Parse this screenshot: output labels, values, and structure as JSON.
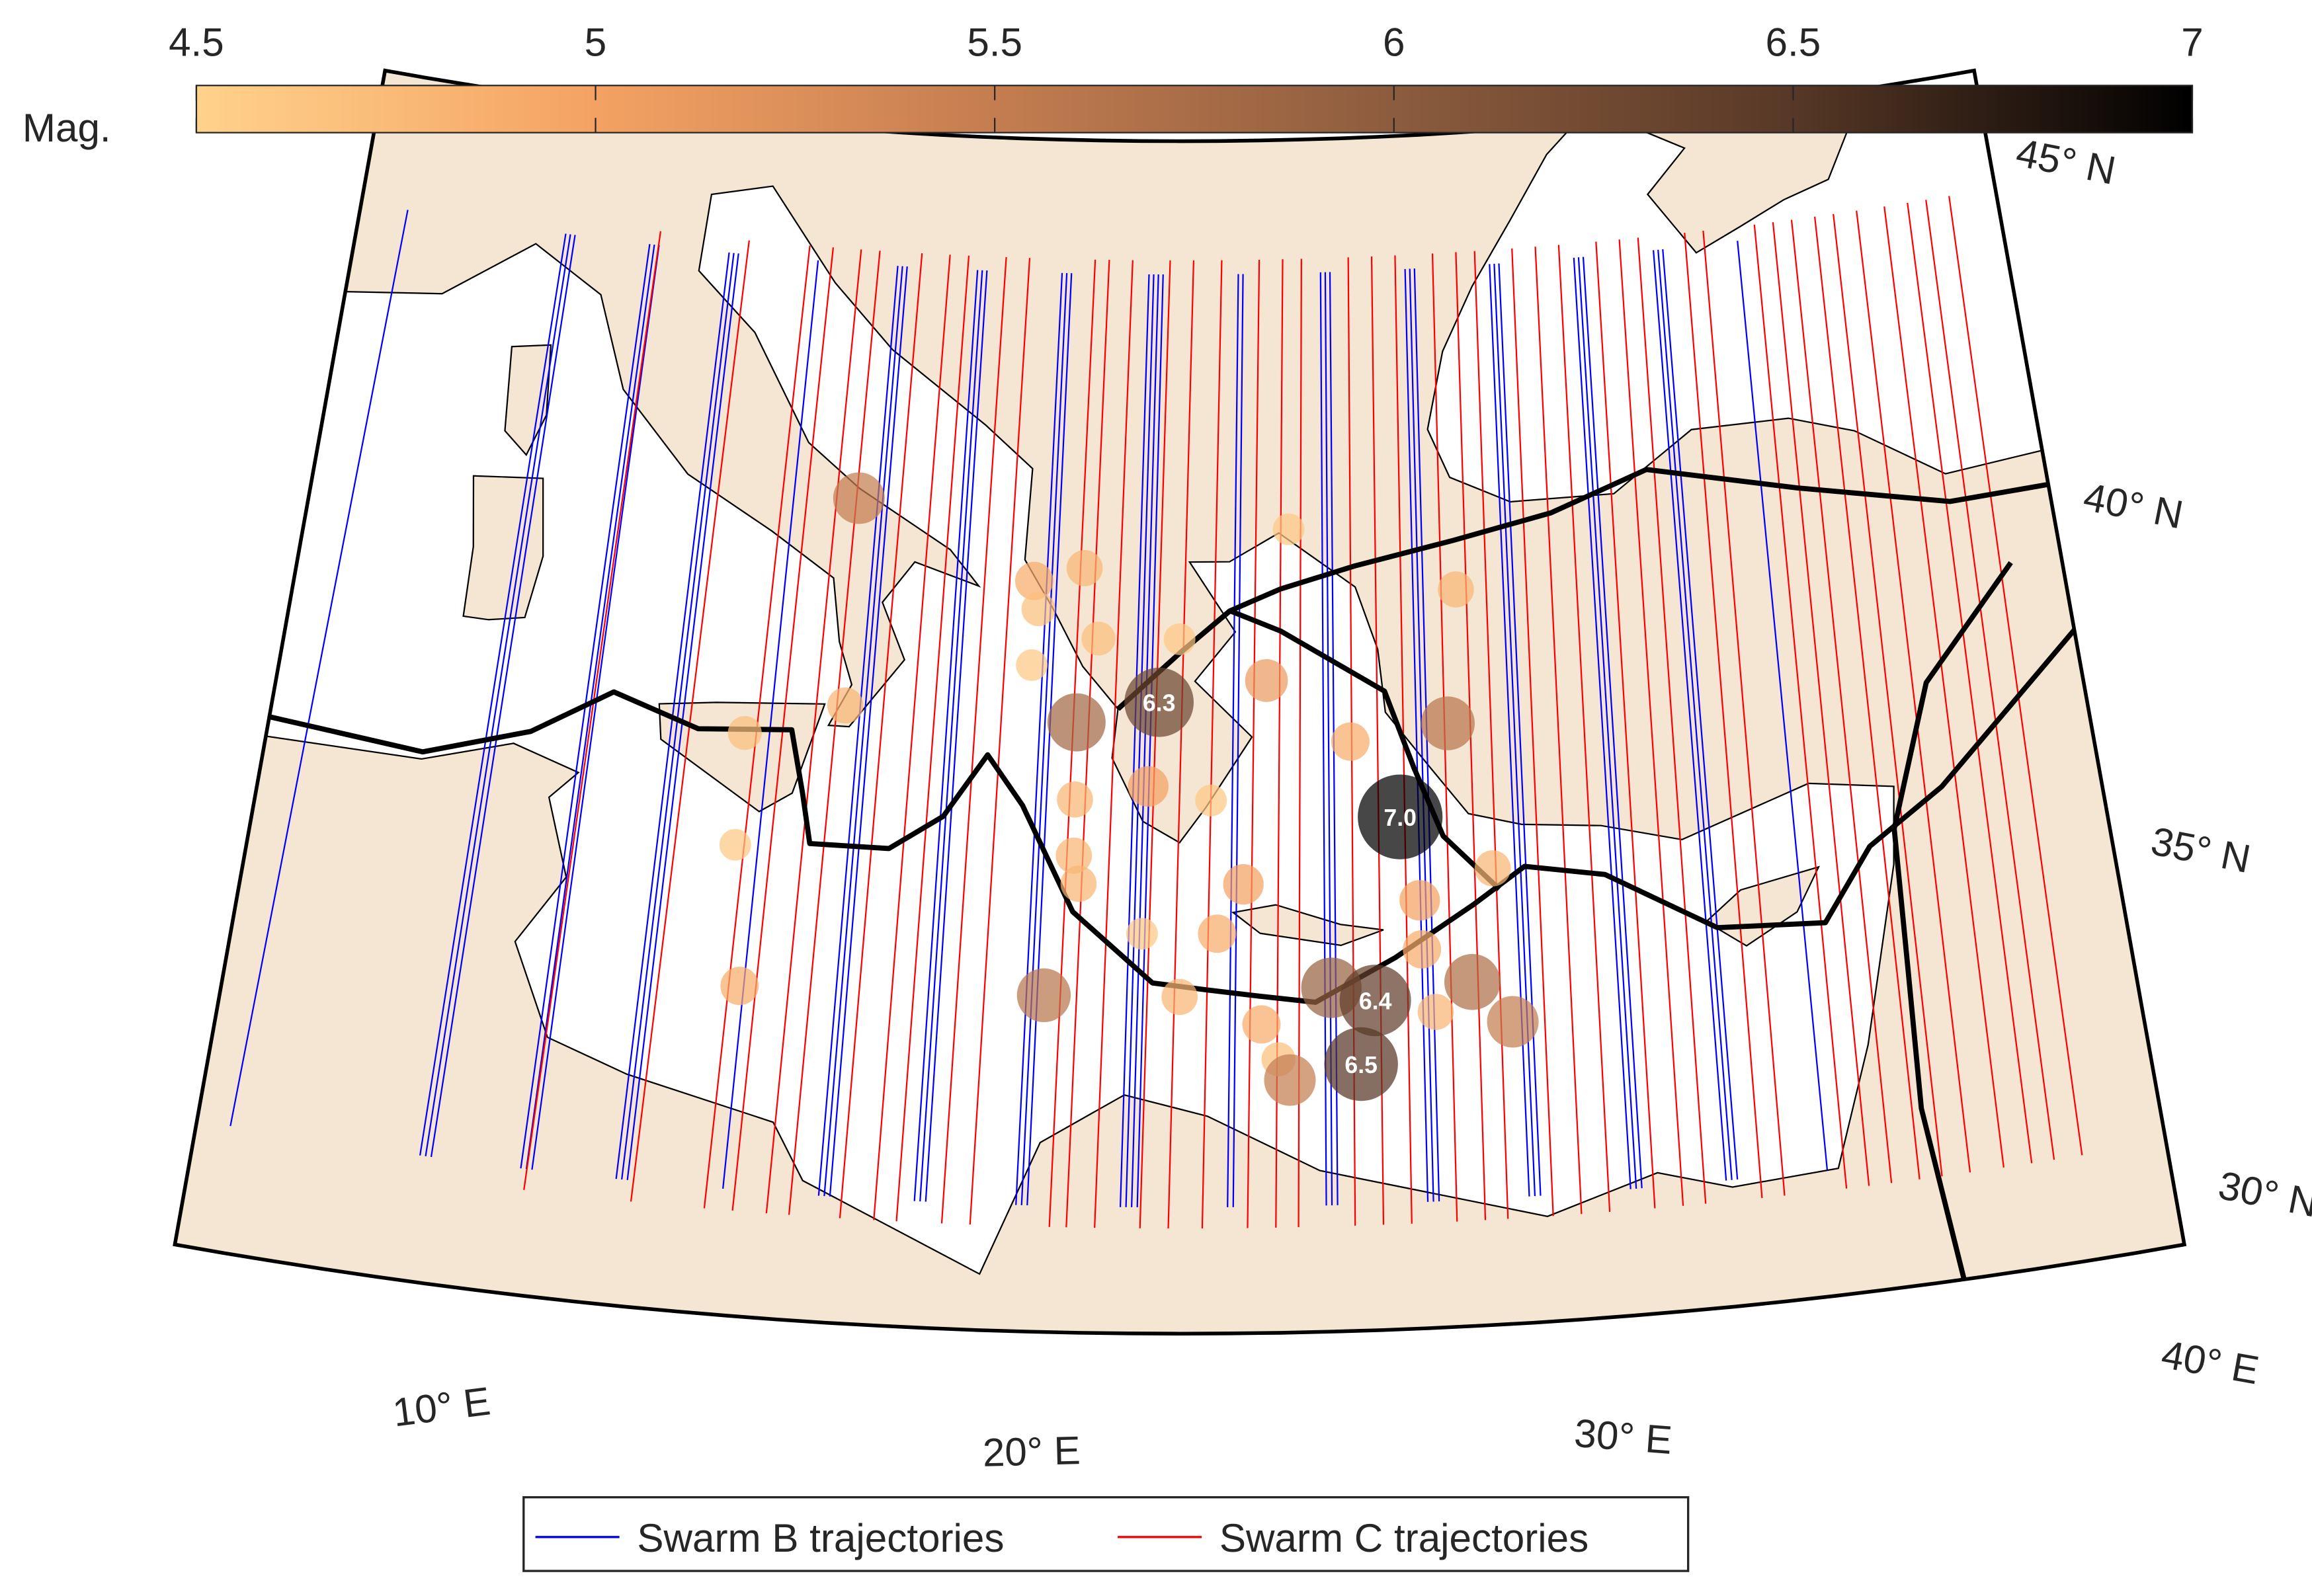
{
  "chart_data": {
    "type": "map",
    "xlim": [
      5,
      40
    ],
    "ylim": [
      29.5,
      46.5
    ],
    "xticks": [
      {
        "value": 10,
        "label": "10° E"
      },
      {
        "value": 20,
        "label": "20° E"
      },
      {
        "value": 30,
        "label": "30° E"
      },
      {
        "value": 40,
        "label": "40° E"
      }
    ],
    "yticks": [
      {
        "value": 30,
        "label": "30° N"
      },
      {
        "value": 35,
        "label": "35° N"
      },
      {
        "value": 40,
        "label": "40° N"
      },
      {
        "value": 45,
        "label": "45° N"
      }
    ],
    "colorbar": {
      "label": "Mag.",
      "lim": [
        4.5,
        7
      ],
      "ticks": [
        4.5,
        5,
        5.5,
        6,
        6.5,
        7
      ]
    },
    "series": [
      {
        "name": "Swarm B trajectories",
        "color": "#0000ff",
        "lat_range": [
          31.3,
          44.6
        ],
        "lon_north": [
          6.0,
          9.4,
          9.5,
          9.6,
          11.2,
          11.3,
          11.4,
          12.9,
          13.0,
          13.1,
          14.8,
          16.5,
          16.6,
          16.7,
          18.2,
          18.3,
          18.4,
          20.0,
          20.1,
          20.2,
          21.85,
          21.95,
          22.05,
          22.15,
          23.75,
          23.85,
          25.5,
          25.6,
          25.7,
          27.3,
          27.4,
          27.5,
          29.1,
          29.2,
          29.3,
          30.9,
          31.0,
          31.1,
          32.6,
          32.7,
          32.8,
          34.4
        ],
        "lon_south": [
          5.6,
          9.0,
          9.1,
          9.2,
          10.8,
          10.9,
          11.0,
          12.5,
          12.6,
          12.7,
          14.4,
          16.1,
          16.2,
          16.3,
          17.8,
          17.9,
          18.0,
          19.6,
          19.7,
          19.8,
          21.45,
          21.55,
          21.65,
          21.75,
          23.35,
          23.45,
          25.1,
          25.2,
          25.3,
          26.9,
          27.0,
          27.1,
          28.7,
          28.8,
          28.9,
          30.5,
          30.6,
          30.7,
          32.2,
          32.3,
          32.4,
          34.0
        ]
      },
      {
        "name": "Swarm C trajectories",
        "color": "#ff0000",
        "lat_range": [
          31.0,
          44.8
        ],
        "lon_north": [
          11.4,
          13.3,
          14.6,
          15.1,
          15.7,
          16.1,
          17.0,
          17.6,
          18.0,
          18.8,
          19.3,
          20.7,
          21.0,
          21.5,
          22.3,
          22.8,
          23.4,
          24.2,
          24.7,
          25.1,
          26.1,
          26.6,
          27.1,
          27.9,
          28.4,
          28.8,
          29.6,
          30.1,
          30.6,
          31.4,
          31.9,
          32.3,
          33.3,
          33.7,
          34.8,
          35.2,
          35.6,
          36.1,
          36.5,
          37.0,
          37.6,
          38.1,
          38.5,
          39.0
        ],
        "lon_south": [
          10.9,
          12.8,
          14.1,
          14.6,
          15.2,
          15.6,
          16.5,
          17.1,
          17.5,
          18.3,
          18.8,
          20.2,
          20.5,
          21.0,
          21.8,
          22.3,
          22.9,
          23.7,
          24.2,
          24.6,
          25.6,
          26.1,
          26.6,
          27.4,
          27.9,
          28.3,
          29.1,
          29.6,
          30.1,
          30.9,
          31.4,
          31.8,
          32.8,
          33.2,
          34.3,
          34.7,
          35.1,
          35.6,
          36.0,
          36.5,
          37.1,
          37.6,
          38.0,
          38.5
        ]
      }
    ],
    "events": {
      "lon": [
        16.0,
        24.7,
        19.6,
        20.6,
        19.7,
        22.5,
        20.9,
        22.1,
        20.5,
        24.2,
        19.6,
        16.0,
        14.1,
        21.9,
        20.5,
        23.1,
        25.8,
        27.7,
        26.7,
        20.5,
        23.7,
        27.0,
        28.4,
        23.2,
        21.8,
        14.1,
        20.0,
        14.4,
        22.5,
        25.3,
        26.1,
        27.9,
        28.6,
        24.0,
        24.3,
        24.5,
        25.8,
        27.0,
        28.0,
        20.6,
        27.2
      ],
      "lat": [
        41.26,
        40.95,
        40.2,
        40.4,
        39.8,
        39.4,
        39.4,
        38.5,
        38.2,
        38.8,
        39.0,
        38.3,
        37.8,
        37.3,
        37.1,
        37.1,
        37.9,
        38.1,
        36.8,
        36.3,
        35.9,
        35.6,
        36.0,
        35.2,
        35.2,
        36.2,
        34.3,
        34.2,
        34.3,
        34.4,
        34.2,
        34.4,
        33.8,
        33.9,
        33.4,
        33.1,
        33.3,
        34.9,
        40.0,
        35.9,
        34.0
      ],
      "values": [
        5.5,
        4.6,
        4.9,
        4.8,
        4.7,
        4.6,
        4.7,
        6.3,
        5.8,
        5.1,
        4.6,
        4.8,
        4.7,
        5.0,
        4.8,
        4.6,
        4.9,
        5.6,
        7.0,
        4.8,
        5.0,
        5.0,
        4.8,
        4.9,
        4.6,
        4.6,
        5.6,
        4.9,
        4.8,
        5.9,
        6.4,
        5.7,
        5.5,
        4.9,
        4.7,
        5.5,
        6.5,
        4.9,
        4.8,
        4.8,
        4.8
      ],
      "value_labels": [
        null,
        null,
        null,
        null,
        null,
        null,
        null,
        "6.3",
        null,
        null,
        null,
        null,
        null,
        null,
        null,
        null,
        null,
        null,
        "7.0",
        null,
        null,
        null,
        null,
        null,
        null,
        null,
        null,
        null,
        null,
        null,
        "6.4",
        null,
        null,
        null,
        null,
        null,
        "6.5",
        null,
        null,
        null,
        null
      ]
    }
  }
}
